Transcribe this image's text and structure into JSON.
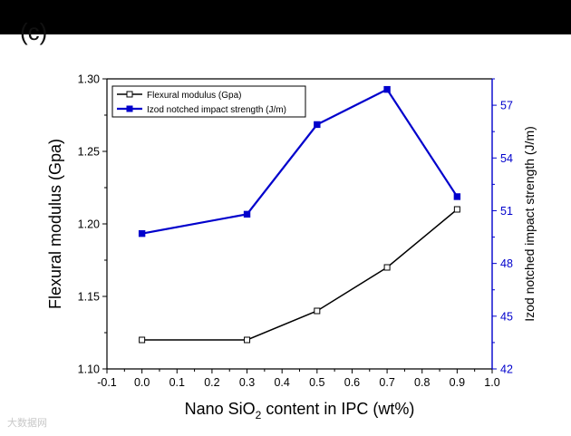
{
  "panel_label": "(c)",
  "watermark": "大数据网",
  "chart_data": {
    "type": "line",
    "xlabel_main": "Nano SiO",
    "xlabel_sub": "2",
    "xlabel_tail": " content in IPC (wt%)",
    "ylabel_left": "Flexural modulus (Gpa)",
    "ylabel_right": "Izod notched impact strength (J/m)",
    "xlim": [
      -0.1,
      1.0
    ],
    "ylim_left": [
      1.1,
      1.3
    ],
    "ylim_right": [
      42,
      58.5
    ],
    "x_ticks": [
      "-0.1",
      "0.0",
      "0.1",
      "0.2",
      "0.3",
      "0.4",
      "0.5",
      "0.6",
      "0.7",
      "0.8",
      "0.9",
      "1.0"
    ],
    "left_ticks": [
      "1.10",
      "1.15",
      "1.20",
      "1.25",
      "1.30"
    ],
    "right_ticks": [
      "42",
      "45",
      "48",
      "51",
      "54",
      "57"
    ],
    "x": [
      0.0,
      0.3,
      0.5,
      0.7,
      0.9
    ],
    "series": [
      {
        "name": "Flexural modulus (Gpa)",
        "axis": "left",
        "values": [
          1.12,
          1.12,
          1.14,
          1.17,
          1.21
        ],
        "color": "#000000",
        "marker": "open-square"
      },
      {
        "name": "Izod notched impact strength (J/m)",
        "axis": "right",
        "values": [
          49.7,
          50.8,
          55.9,
          57.9,
          51.8
        ],
        "color": "#0000cc",
        "marker": "filled-square"
      }
    ],
    "legend_position": "top-left",
    "grid": false
  }
}
